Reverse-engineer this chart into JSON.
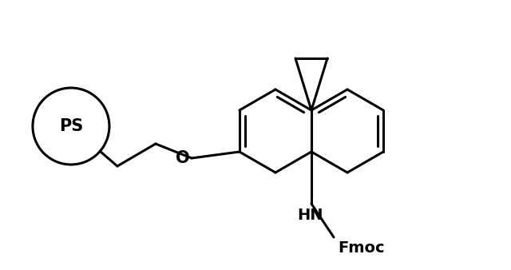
{
  "background_color": "#ffffff",
  "line_color": "#000000",
  "line_width": 2.2,
  "ps_label": "PS",
  "o_label": "O",
  "hn_label": "HN",
  "fmoc_label": "Fmoc",
  "figsize": [
    6.4,
    3.38
  ],
  "dpi": 100
}
